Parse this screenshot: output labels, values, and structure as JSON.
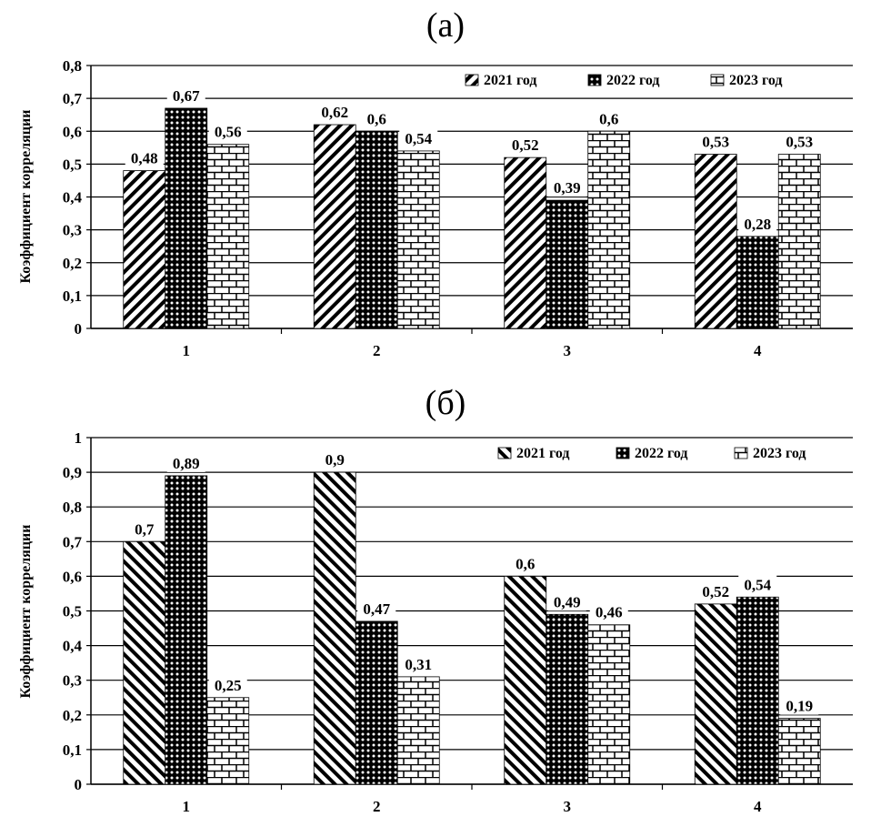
{
  "panels": [
    {
      "title": "(а)"
    },
    {
      "title": "(б)"
    }
  ],
  "chart_data": [
    {
      "type": "bar",
      "title": "(а)",
      "xlabel": "",
      "ylabel": "Коэффициент корреляции",
      "categories": [
        "1",
        "2",
        "3",
        "4"
      ],
      "ylim": [
        0,
        0.8
      ],
      "yticks": [
        "0",
        "0,1",
        "0,2",
        "0,3",
        "0,4",
        "0,5",
        "0,6",
        "0,7",
        "0,8"
      ],
      "grid": true,
      "legend_position": "top-right",
      "series": [
        {
          "name": "2021 год",
          "values": [
            0.48,
            0.62,
            0.52,
            0.53
          ],
          "labels": [
            "0,48",
            "0,62",
            "0,52",
            "0,53"
          ],
          "pattern": "diag-right"
        },
        {
          "name": "2022 год",
          "values": [
            0.67,
            0.6,
            0.39,
            0.28
          ],
          "labels": [
            "0,67",
            "0,6",
            "0,39",
            "0,28"
          ],
          "pattern": "dots"
        },
        {
          "name": "2023 год",
          "values": [
            0.56,
            0.54,
            0.6,
            0.53
          ],
          "labels": [
            "0,56",
            "0,54",
            "0,6",
            "0,53"
          ],
          "pattern": "bricks"
        }
      ]
    },
    {
      "type": "bar",
      "title": "(б)",
      "xlabel": "",
      "ylabel": "Коэффициент корреляции",
      "categories": [
        "1",
        "2",
        "3",
        "4"
      ],
      "ylim": [
        0,
        1
      ],
      "yticks": [
        "0",
        "0,1",
        "0,2",
        "0,3",
        "0,4",
        "0,5",
        "0,6",
        "0,7",
        "0,8",
        "0,9",
        "1"
      ],
      "grid": true,
      "legend_position": "top-right",
      "series": [
        {
          "name": "2021 год",
          "values": [
            0.7,
            0.9,
            0.6,
            0.52
          ],
          "labels": [
            "0,7",
            "0,9",
            "0,6",
            "0,52"
          ],
          "pattern": "diag-left"
        },
        {
          "name": "2022 год",
          "values": [
            0.89,
            0.47,
            0.49,
            0.54
          ],
          "labels": [
            "0,89",
            "0,47",
            "0,49",
            "0,54"
          ],
          "pattern": "dots"
        },
        {
          "name": "2023 год",
          "values": [
            0.25,
            0.31,
            0.46,
            0.19
          ],
          "labels": [
            "0,25",
            "0,31",
            "0,46",
            "0,19"
          ],
          "pattern": "bricks"
        }
      ]
    }
  ]
}
